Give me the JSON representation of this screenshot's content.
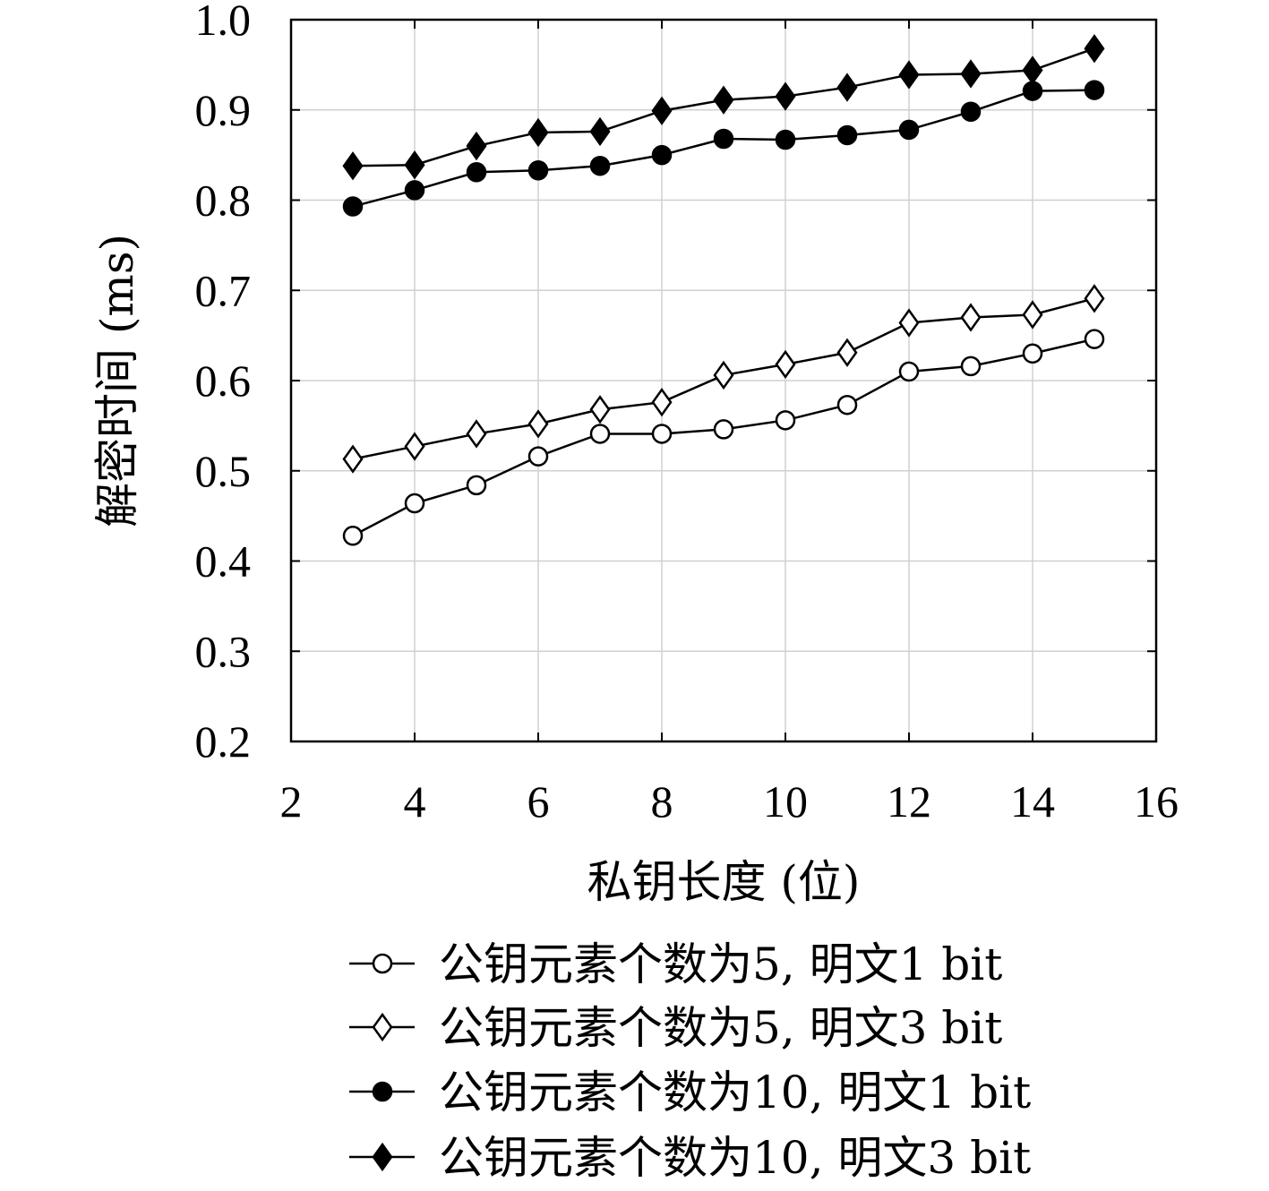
{
  "chart_data": {
    "type": "line",
    "xlabel": "私钥长度 (位)",
    "ylabel": "解密时间 (ms)",
    "xlim": [
      2,
      16
    ],
    "ylim": [
      0.2,
      1.0
    ],
    "x_ticks": [
      "2",
      "4",
      "6",
      "8",
      "10",
      "12",
      "14",
      "16"
    ],
    "y_ticks": [
      "0.2",
      "0.3",
      "0.4",
      "0.5",
      "0.6",
      "0.7",
      "0.8",
      "0.9",
      "1.0"
    ],
    "grid": true,
    "legend_position": "bottom",
    "x": [
      3,
      4,
      5,
      6,
      7,
      8,
      9,
      10,
      11,
      12,
      13,
      14,
      15
    ],
    "series": [
      {
        "name": "公钥元素个数为5, 明文1 bit",
        "marker": "circle-open",
        "values": [
          0.428,
          0.464,
          0.484,
          0.516,
          0.541,
          0.541,
          0.546,
          0.556,
          0.573,
          0.61,
          0.616,
          0.63,
          0.646
        ]
      },
      {
        "name": "公钥元素个数为5, 明文3 bit",
        "marker": "diamond-open",
        "values": [
          0.513,
          0.527,
          0.541,
          0.552,
          0.568,
          0.576,
          0.606,
          0.618,
          0.631,
          0.664,
          0.67,
          0.673,
          0.691
        ]
      },
      {
        "name": "公钥元素个数为10, 明文1 bit",
        "marker": "circle-filled",
        "values": [
          0.793,
          0.811,
          0.831,
          0.833,
          0.838,
          0.85,
          0.868,
          0.867,
          0.872,
          0.878,
          0.898,
          0.921,
          0.922
        ]
      },
      {
        "name": "公钥元素个数为10, 明文3 bit",
        "marker": "diamond-filled",
        "values": [
          0.838,
          0.839,
          0.86,
          0.875,
          0.876,
          0.899,
          0.911,
          0.915,
          0.925,
          0.939,
          0.94,
          0.944,
          0.968
        ]
      }
    ]
  }
}
